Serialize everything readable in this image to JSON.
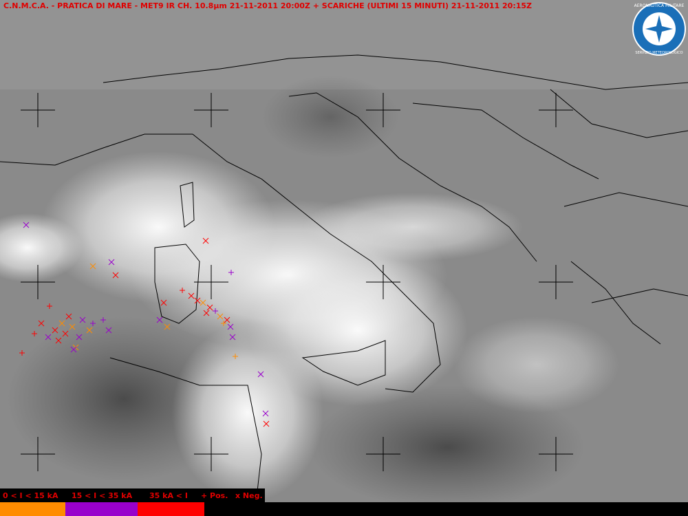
{
  "header": {
    "title": "C.N.M.C.A. - PRATICA DI MARE - MET9 IR CH. 10.8µm  21-11-2011 20:00Z  +  SCARICHE (ULTIMI 15 MINUTI)  21-11-2011 20:15Z"
  },
  "logo": {
    "top": "AERONAUTICA MILITARE",
    "bottom": "SERVIZIO METEOROLOGICO"
  },
  "legend": {
    "items": [
      "0 < I < 15 kA",
      "15 < I < 35 kA",
      "35 kA < I"
    ],
    "polarity": [
      "+ Pos.",
      "x Neg."
    ]
  }
}
